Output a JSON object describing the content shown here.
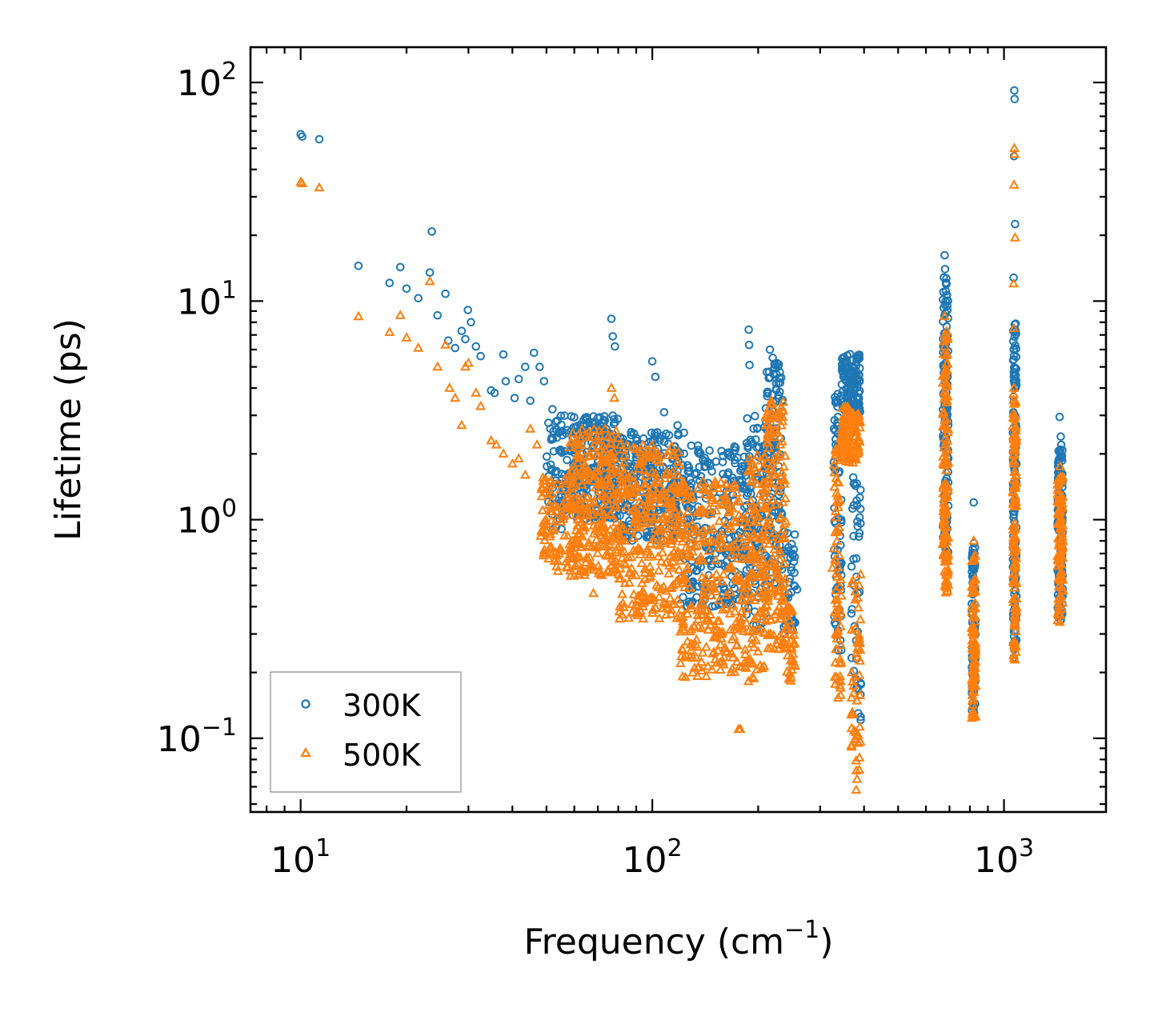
{
  "chart_data": {
    "type": "scatter",
    "title": "",
    "xlabel": "Frequency (cm",
    "xlabel_sup": "−1",
    "xlabel_end": ")",
    "ylabel": "Lifetime (ps)",
    "xscale": "log",
    "yscale": "log",
    "xlim": [
      7.2,
      1950
    ],
    "ylim": [
      0.046,
      145
    ],
    "x_ticks": [
      {
        "value": 10,
        "base": "10",
        "exp": "1"
      },
      {
        "value": 100,
        "base": "10",
        "exp": "2"
      },
      {
        "value": 1000,
        "base": "10",
        "exp": "3"
      }
    ],
    "y_ticks": [
      {
        "value": 0.1,
        "base": "10",
        "exp": "−1"
      },
      {
        "value": 1,
        "base": "10",
        "exp": "0"
      },
      {
        "value": 10,
        "base": "10",
        "exp": "1"
      },
      {
        "value": 100,
        "base": "10",
        "exp": "2"
      }
    ],
    "legend_position": "lower-left",
    "colors": {
      "s300": "#1f77b4",
      "s500": "#ff7f0e",
      "legend_border": "#a0a0a0"
    },
    "series": [
      {
        "name": "300K",
        "marker": "circle",
        "color": "#1f77b4",
        "points": [
          [
            10.0,
            58
          ],
          [
            10.1,
            56.5
          ],
          [
            11.3,
            55
          ],
          [
            14.6,
            14.5
          ],
          [
            17.9,
            12.1
          ],
          [
            19.2,
            14.3
          ],
          [
            20.0,
            11.4
          ],
          [
            21.6,
            10.3
          ],
          [
            23.3,
            13.5
          ],
          [
            23.6,
            20.8
          ],
          [
            24.5,
            8.6
          ],
          [
            25.8,
            10.8
          ],
          [
            26.3,
            6.6
          ],
          [
            27.5,
            6.1
          ],
          [
            28.7,
            7.3
          ],
          [
            29.4,
            6.7
          ],
          [
            29.9,
            9.1
          ],
          [
            30.5,
            8.0
          ],
          [
            31.5,
            6.2
          ],
          [
            32.5,
            5.6
          ],
          [
            34.8,
            3.9
          ],
          [
            35.6,
            3.8
          ],
          [
            37.7,
            5.7
          ],
          [
            38.3,
            4.3
          ],
          [
            40.6,
            3.6
          ],
          [
            41.7,
            4.4
          ],
          [
            43.5,
            5.0
          ],
          [
            45.0,
            3.5
          ],
          [
            46.1,
            5.8
          ],
          [
            47.8,
            5.0
          ],
          [
            49.2,
            4.3
          ],
          [
            52.0,
            3.2
          ],
          [
            76.5,
            8.3
          ],
          [
            77.2,
            6.9
          ],
          [
            78.3,
            6.2
          ],
          [
            100.0,
            5.3
          ],
          [
            102.0,
            4.5
          ],
          [
            108.0,
            3.1
          ],
          [
            118.0,
            2.7
          ],
          [
            123.0,
            2.5
          ],
          [
            188.0,
            7.4
          ],
          [
            188.5,
            6.3
          ],
          [
            189.0,
            5.1
          ],
          [
            216.0,
            6.0
          ],
          [
            220.0,
            5.5
          ],
          [
            225.0,
            4.2
          ],
          [
            253.0,
            0.5
          ],
          [
            258.0,
            0.48
          ],
          [
            375.0,
            0.5
          ],
          [
            380.0,
            0.28
          ],
          [
            385.0,
            0.13
          ],
          [
            678.0,
            16.2
          ],
          [
            680.0,
            14.0
          ],
          [
            690.0,
            9.5
          ],
          [
            820.0,
            1.2
          ],
          [
            822.0,
            0.78
          ],
          [
            1070.0,
            92
          ],
          [
            1072.0,
            84
          ],
          [
            1068.0,
            46
          ],
          [
            1075.0,
            22.5
          ],
          [
            1065.0,
            12.8
          ],
          [
            1440.0,
            2.95
          ],
          [
            1450.0,
            2.4
          ],
          [
            1455.0,
            2.2
          ]
        ],
        "bands": [
          {
            "x": [
              50,
              58
            ],
            "y": [
              0.9,
              3.0
            ],
            "n": 70
          },
          {
            "x": [
              58,
              80
            ],
            "y": [
              1.0,
              3.0
            ],
            "n": 260
          },
          {
            "x": [
              80,
              120
            ],
            "y": [
              0.8,
              2.6
            ],
            "n": 280
          },
          {
            "x": [
              120,
              185
            ],
            "y": [
              0.4,
              2.2
            ],
            "n": 260
          },
          {
            "x": [
              185,
              210
            ],
            "y": [
              0.3,
              3.0
            ],
            "n": 110
          },
          {
            "x": [
              210,
              235
            ],
            "y": [
              0.5,
              5.2
            ],
            "n": 140
          },
          {
            "x": [
              235,
              255
            ],
            "y": [
              0.3,
              0.9
            ],
            "n": 40
          },
          {
            "x": [
              328,
              345
            ],
            "y": [
              0.25,
              3.8
            ],
            "n": 70
          },
          {
            "x": [
              345,
              390
            ],
            "y": [
              3.0,
              5.8
            ],
            "n": 120
          },
          {
            "x": [
              368,
              392
            ],
            "y": [
              0.12,
              1.6
            ],
            "n": 40
          },
          {
            "x": [
              670,
              695
            ],
            "y": [
              0.7,
              13.0
            ],
            "n": 130
          },
          {
            "x": [
              810,
              830
            ],
            "y": [
              0.13,
              0.75
            ],
            "n": 90
          },
          {
            "x": [
              1060,
              1085
            ],
            "y": [
              0.23,
              8.0
            ],
            "n": 130
          },
          {
            "x": [
              1420,
              1470
            ],
            "y": [
              0.33,
              2.1
            ],
            "n": 110
          }
        ]
      },
      {
        "name": "500K",
        "marker": "triangle",
        "color": "#ff7f0e",
        "points": [
          [
            10.0,
            35
          ],
          [
            10.1,
            34.5
          ],
          [
            11.3,
            33
          ],
          [
            14.6,
            8.5
          ],
          [
            17.9,
            7.2
          ],
          [
            19.2,
            8.6
          ],
          [
            20.0,
            6.8
          ],
          [
            21.6,
            6.1
          ],
          [
            23.3,
            12.3
          ],
          [
            24.5,
            5.0
          ],
          [
            25.8,
            6.3
          ],
          [
            26.5,
            4.0
          ],
          [
            27.5,
            3.6
          ],
          [
            28.7,
            2.7
          ],
          [
            29.4,
            5.0
          ],
          [
            30.0,
            5.2
          ],
          [
            31.5,
            3.8
          ],
          [
            32.5,
            3.3
          ],
          [
            34.8,
            2.3
          ],
          [
            36.0,
            2.2
          ],
          [
            37.7,
            2.0
          ],
          [
            40.0,
            1.8
          ],
          [
            41.7,
            1.9
          ],
          [
            43.5,
            1.6
          ],
          [
            45.0,
            2.6
          ],
          [
            47.0,
            2.2
          ],
          [
            49.0,
            1.5
          ],
          [
            68.0,
            0.46
          ],
          [
            76.5,
            4.0
          ],
          [
            78.0,
            3.6
          ],
          [
            176.0,
            0.11
          ],
          [
            178.0,
            0.11
          ],
          [
            218.0,
            3.5
          ],
          [
            325.0,
            0.6
          ],
          [
            380.0,
            0.058
          ],
          [
            382.0,
            0.065
          ],
          [
            385.0,
            0.095
          ],
          [
            678.0,
            8.5
          ],
          [
            682.0,
            7.0
          ],
          [
            690.0,
            4.8
          ],
          [
            820.0,
            0.8
          ],
          [
            1070.0,
            50
          ],
          [
            1072.0,
            47
          ],
          [
            1068.0,
            34
          ],
          [
            1075.0,
            19.5
          ],
          [
            1065.0,
            12.0
          ],
          [
            1068.0,
            7.5
          ],
          [
            1445.0,
            1.75
          ]
        ],
        "bands": [
          {
            "x": [
              48,
              58
            ],
            "y": [
              0.58,
              1.6
            ],
            "n": 80
          },
          {
            "x": [
              58,
              80
            ],
            "y": [
              0.55,
              2.6
            ],
            "n": 280
          },
          {
            "x": [
              80,
              120
            ],
            "y": [
              0.35,
              2.2
            ],
            "n": 300
          },
          {
            "x": [
              120,
              185
            ],
            "y": [
              0.19,
              1.5
            ],
            "n": 300
          },
          {
            "x": [
              185,
              210
            ],
            "y": [
              0.18,
              2.0
            ],
            "n": 120
          },
          {
            "x": [
              210,
              240
            ],
            "y": [
              0.25,
              3.5
            ],
            "n": 160
          },
          {
            "x": [
              240,
              255
            ],
            "y": [
              0.18,
              0.4
            ],
            "n": 40
          },
          {
            "x": [
              328,
              345
            ],
            "y": [
              0.15,
              2.4
            ],
            "n": 70
          },
          {
            "x": [
              345,
              390
            ],
            "y": [
              1.8,
              3.3
            ],
            "n": 110
          },
          {
            "x": [
              368,
              392
            ],
            "y": [
              0.07,
              0.6
            ],
            "n": 50
          },
          {
            "x": [
              670,
              695
            ],
            "y": [
              0.45,
              7.5
            ],
            "n": 130
          },
          {
            "x": [
              810,
              830
            ],
            "y": [
              0.12,
              0.7
            ],
            "n": 90
          },
          {
            "x": [
              1060,
              1085
            ],
            "y": [
              0.22,
              4.0
            ],
            "n": 130
          },
          {
            "x": [
              1420,
              1470
            ],
            "y": [
              0.33,
              1.6
            ],
            "n": 110
          }
        ]
      }
    ]
  }
}
